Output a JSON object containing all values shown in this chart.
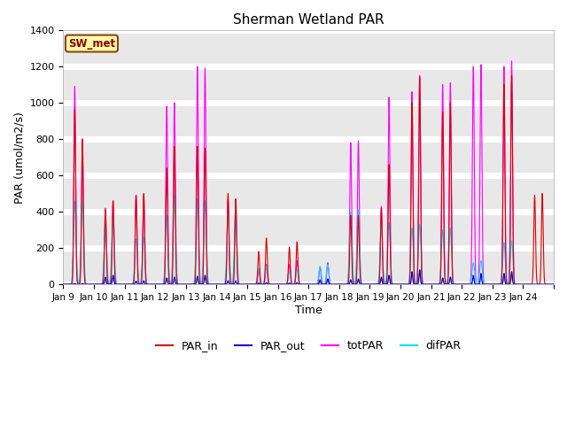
{
  "title": "Sherman Wetland PAR",
  "xlabel": "Time",
  "ylabel": "PAR (umol/m2/s)",
  "ylim": [
    0,
    1400
  ],
  "yticks": [
    0,
    200,
    400,
    600,
    800,
    1000,
    1200,
    1400
  ],
  "xtick_labels": [
    "Jan 9",
    "Jan 10",
    "Jan 11",
    "Jan 12",
    "Jan 13",
    "Jan 14",
    "Jan 15",
    "Jan 16",
    "Jan 17",
    "Jan 18",
    "Jan 19",
    "Jan 20",
    "Jan 21",
    "Jan 22",
    "Jan 23",
    "Jan 24"
  ],
  "station_label": "SW_met",
  "bg_color": "#e8e8e8",
  "grid_color": "white",
  "colors": {
    "PAR_in": "#dd0000",
    "PAR_out": "#0000cc",
    "totPAR": "#ff00ff",
    "difPAR": "#00ddff"
  },
  "day_peaks_am": {
    "PAR_in": [
      960,
      410,
      490,
      640,
      760,
      500,
      180,
      205,
      0,
      380,
      420,
      1000,
      950,
      0,
      1100,
      490
    ],
    "totPAR": [
      1090,
      420,
      490,
      980,
      1200,
      470,
      80,
      110,
      95,
      780,
      430,
      1060,
      1100,
      1200,
      1200,
      0
    ],
    "PAR_out": [
      5,
      40,
      18,
      35,
      45,
      20,
      8,
      8,
      25,
      25,
      40,
      70,
      35,
      50,
      60,
      0
    ],
    "difPAR": [
      460,
      340,
      250,
      380,
      470,
      380,
      90,
      70,
      100,
      400,
      320,
      310,
      300,
      120,
      230,
      0
    ]
  },
  "day_peaks_pm": {
    "PAR_in": [
      800,
      460,
      500,
      760,
      750,
      470,
      255,
      235,
      0,
      380,
      660,
      1140,
      1000,
      0,
      1150,
      500
    ],
    "totPAR": [
      800,
      460,
      490,
      1000,
      1190,
      470,
      110,
      130,
      120,
      790,
      1030,
      1150,
      1110,
      1210,
      1230,
      0
    ],
    "PAR_out": [
      5,
      50,
      20,
      40,
      50,
      20,
      10,
      10,
      30,
      30,
      50,
      80,
      40,
      60,
      70,
      0
    ],
    "difPAR": [
      460,
      370,
      260,
      490,
      460,
      400,
      100,
      80,
      110,
      410,
      340,
      330,
      310,
      130,
      240,
      0
    ]
  },
  "n_days": 16,
  "pts_per_day": 288,
  "figsize": [
    6.4,
    4.8
  ],
  "dpi": 100
}
